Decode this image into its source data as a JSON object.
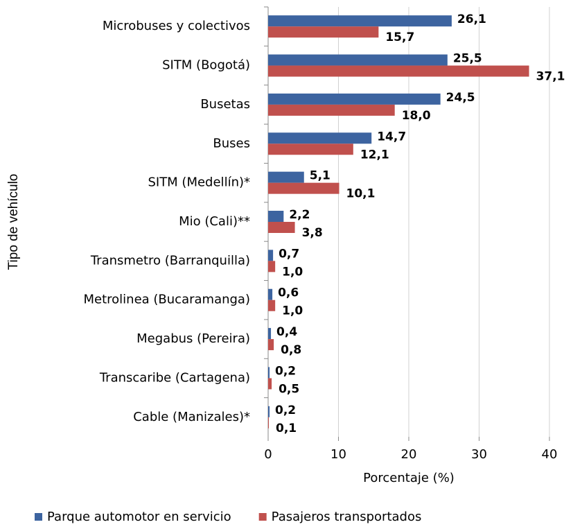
{
  "chart_data": {
    "type": "hbar",
    "ylabel": "Tipo de vehículo",
    "xlabel": "Porcentaje (%)",
    "categories": [
      "Microbuses y colectivos",
      "SITM (Bogotá)",
      "Busetas",
      "Buses",
      "SITM (Medellín)*",
      "Mio (Cali)**",
      "Transmetro (Barranquilla)",
      "Metrolinea (Bucaramanga)",
      "Megabus (Pereira)",
      "Transcaribe (Cartagena)",
      "Cable (Manizales)*"
    ],
    "series": [
      {
        "name": "Parque automotor en servicio",
        "color": "#3d64a0",
        "label_color": "#254061",
        "values": [
          26.1,
          25.5,
          24.5,
          14.7,
          5.1,
          2.2,
          0.7,
          0.6,
          0.4,
          0.2,
          0.2
        ],
        "value_labels": [
          "26,1",
          "25,5",
          "24,5",
          "14,7",
          "5,1",
          "2,2",
          "0,7",
          "0,6",
          "0,4",
          "0,2",
          "0,2"
        ]
      },
      {
        "name": "Pasajeros transportados",
        "color": "#c0504d",
        "label_color": "#c00000",
        "values": [
          15.7,
          37.1,
          18.0,
          12.1,
          10.1,
          3.8,
          1.0,
          1.0,
          0.8,
          0.5,
          0.1
        ],
        "value_labels": [
          "15,7",
          "37,1",
          "18,0",
          "12,1",
          "10,1",
          "3,8",
          "1,0",
          "1,0",
          "0,8",
          "0,5",
          "0,1"
        ]
      }
    ],
    "xlim": [
      0,
      40
    ],
    "xticks": [
      0,
      10,
      20,
      30,
      40
    ],
    "grid": true,
    "legend": "bottom"
  }
}
